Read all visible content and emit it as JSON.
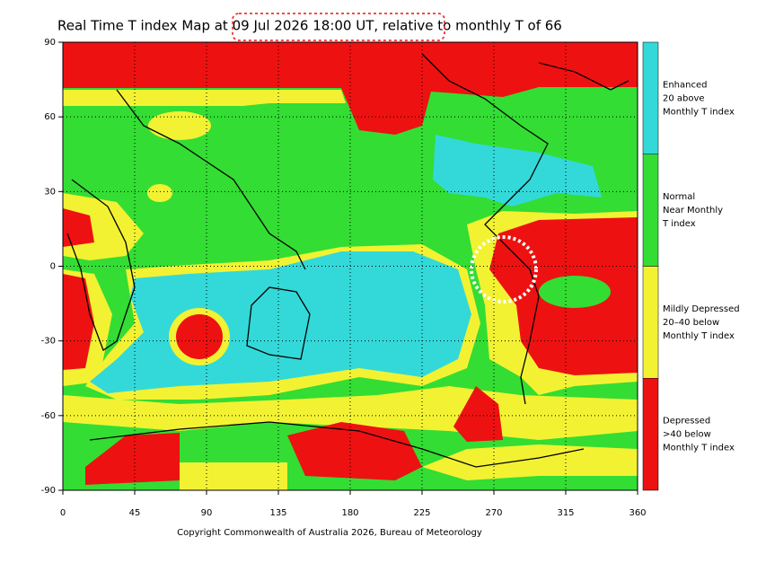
{
  "map": {
    "title": "Real Time T index Map at 09 Jul 2026 18:00 UT, relative to monthly T of 66",
    "copyright": "Copyright Commonwealth of Australia 2026, Bureau of Meteorology",
    "xlim": [
      0,
      360
    ],
    "xticks": [
      0,
      45,
      90,
      135,
      180,
      225,
      270,
      315,
      360
    ],
    "ylim": [
      -90,
      90
    ],
    "yticks": [
      90,
      60,
      30,
      0,
      -30,
      -60,
      -90
    ],
    "legend": [
      {
        "color": "#33d9d9",
        "lines": [
          "Enhanced",
          "20 above",
          "Monthly T index"
        ]
      },
      {
        "color": "#33dd33",
        "lines": [
          "Normal",
          "Near Monthly",
          "T index"
        ]
      },
      {
        "color": "#f2f233",
        "lines": [
          "Mildly Depressed",
          "20–40 below",
          "Monthly T index"
        ]
      },
      {
        "color": "#ee1111",
        "lines": [
          "Depressed",
          ">40 below",
          "Monthly T index"
        ]
      }
    ]
  }
}
